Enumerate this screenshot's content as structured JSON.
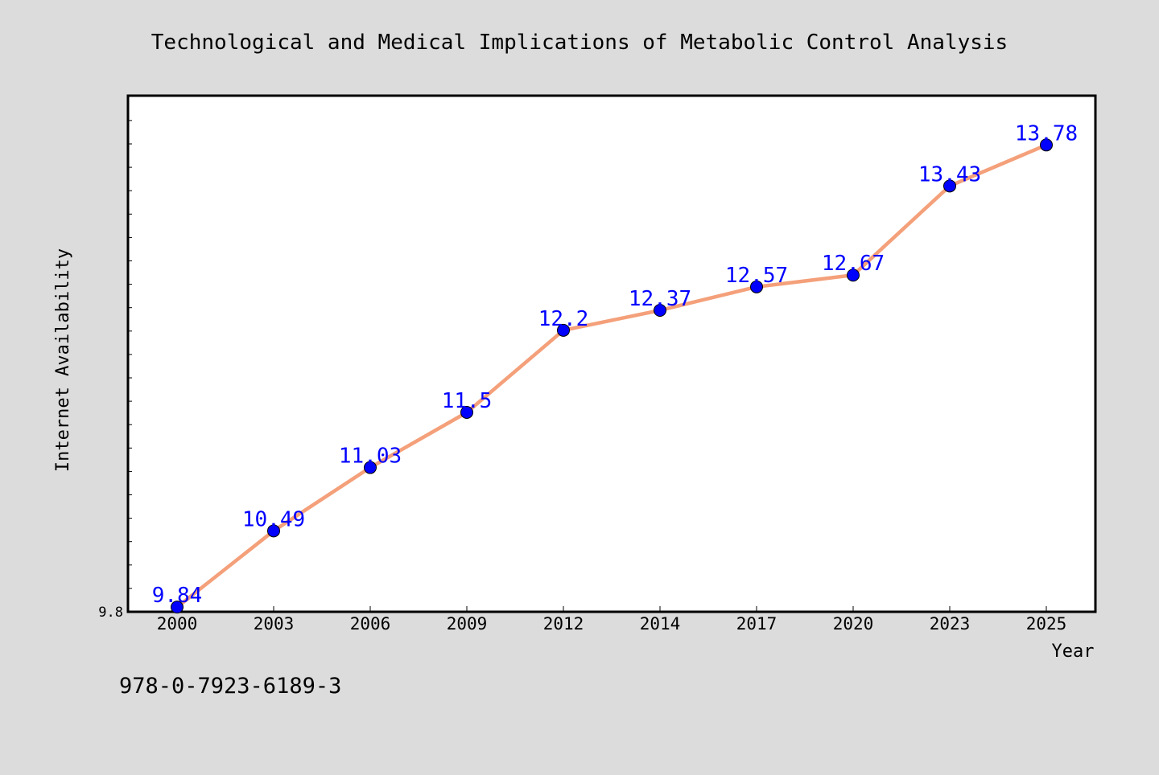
{
  "chart_data": {
    "type": "line",
    "title": "Technological and Medical Implications of Metabolic Control Analysis",
    "xlabel": "Year",
    "ylabel": "Internet Availability",
    "categories": [
      "2000",
      "2003",
      "2006",
      "2009",
      "2012",
      "2014",
      "2017",
      "2020",
      "2023",
      "2025"
    ],
    "series": [
      {
        "values": [
          9.84,
          10.49,
          11.03,
          11.5,
          12.2,
          12.37,
          12.57,
          12.67,
          13.43,
          13.78
        ],
        "labels": [
          "9.84",
          "10.49",
          "11.03",
          "11.5",
          "12.2",
          "12.37",
          "12.57",
          "12.67",
          "13.43",
          "13.78"
        ]
      }
    ],
    "y_tick_labels": [
      "9.8"
    ],
    "ylim": [
      9.8,
      14.2
    ],
    "grid": false,
    "legend": "none",
    "colors": {
      "line": "#f4a07a",
      "marker": "#0000ff",
      "data_label": "#0000ff",
      "background": "#dcdcdc",
      "plot_area": "#ffffff"
    }
  },
  "footer": {
    "isbn": "978-0-7923-6189-3"
  }
}
